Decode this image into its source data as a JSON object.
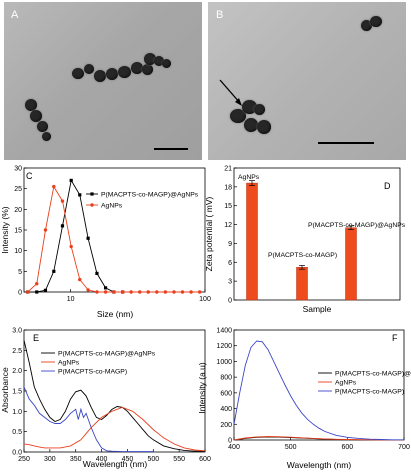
{
  "panels": {
    "a": {
      "label": "A"
    },
    "b": {
      "label": "B"
    }
  },
  "chart_data": [
    {
      "panel": "C",
      "type": "line",
      "xlabel": "Size (nm)",
      "ylabel": "Intensity (%)",
      "xscale": "log",
      "xlim": [
        4.5,
        100
      ],
      "ylim": [
        0,
        30
      ],
      "xticks": [
        10,
        100
      ],
      "yticks": [
        0,
        5,
        10,
        15,
        20,
        25,
        30
      ],
      "legend_position": "top-right",
      "series": [
        {
          "name": "P(MACPTS-co-MAGP)@AgNPs",
          "color": "#000000",
          "marker": "square",
          "x": [
            4.8,
            5.6,
            6.5,
            7.5,
            8.7,
            10.1,
            11.7,
            13.5,
            15.7,
            18.2,
            21,
            24.4
          ],
          "y": [
            0,
            0,
            0.4,
            5,
            16,
            27,
            23.5,
            13,
            4.5,
            1,
            0,
            0
          ]
        },
        {
          "name": "AgNPs",
          "color": "#e8401c",
          "marker": "circle",
          "x": [
            4.8,
            5.6,
            6.5,
            7.5,
            8.7,
            10.1,
            11.7,
            13.5,
            15.7,
            18.2,
            21,
            24.4,
            28.2,
            32.7,
            37.8,
            43.8,
            50.7,
            58.8,
            68,
            78.8,
            91.3
          ],
          "y": [
            0,
            2,
            15,
            25.5,
            22,
            11,
            3,
            0.5,
            0,
            0,
            0,
            0,
            0,
            0,
            0,
            0,
            0,
            0,
            0,
            0,
            0
          ]
        }
      ]
    },
    {
      "panel": "D",
      "type": "bar",
      "xlabel": "Sample",
      "ylabel": "Zeta potential ( mV)",
      "ylim": [
        0,
        21
      ],
      "yticks": [
        0,
        3,
        6,
        9,
        12,
        15,
        18,
        21
      ],
      "color": "#ef4c1e",
      "categories": [
        "AgNPs",
        "P(MACPTS-co-MAGP)",
        "P(MACPTS-co-MAGP)@AgNPs"
      ],
      "values": [
        18.6,
        5.2,
        11.5
      ],
      "errors": [
        0.4,
        0.3,
        0.3
      ]
    },
    {
      "panel": "E",
      "type": "line",
      "xlabel": "Wavelength (nm)",
      "ylabel": "Absorbance",
      "xlim": [
        250,
        600
      ],
      "ylim": [
        0,
        3.0
      ],
      "xticks": [
        250,
        300,
        350,
        400,
        450,
        500,
        550,
        600
      ],
      "yticks": [
        0.0,
        0.5,
        1.0,
        1.5,
        2.0,
        2.5,
        3.0
      ],
      "legend_position": "top-right",
      "series": [
        {
          "name": "P(MACPTS-co-MAGP)@AgNPs",
          "color": "#000000",
          "x": [
            250,
            260,
            270,
            280,
            290,
            300,
            310,
            320,
            330,
            340,
            350,
            360,
            370,
            380,
            390,
            400,
            410,
            420,
            430,
            440,
            450,
            460,
            470,
            480,
            490,
            500,
            520,
            540,
            560,
            580,
            600
          ],
          "y": [
            2.75,
            2.2,
            1.6,
            1.3,
            1.05,
            0.85,
            0.75,
            0.8,
            1.0,
            1.3,
            1.48,
            1.52,
            1.38,
            1.1,
            0.85,
            0.8,
            0.9,
            1.05,
            1.12,
            1.1,
            1.0,
            0.85,
            0.7,
            0.55,
            0.4,
            0.3,
            0.15,
            0.08,
            0.04,
            0.02,
            0.02
          ]
        },
        {
          "name": "AgNPs",
          "color": "#e8401c",
          "x": [
            250,
            260,
            270,
            280,
            290,
            300,
            320,
            340,
            360,
            380,
            400,
            420,
            440,
            460,
            480,
            500,
            520,
            540,
            560,
            580,
            600
          ],
          "y": [
            0.2,
            0.18,
            0.15,
            0.12,
            0.1,
            0.1,
            0.1,
            0.15,
            0.3,
            0.6,
            0.85,
            1.0,
            1.1,
            1.0,
            0.8,
            0.55,
            0.35,
            0.2,
            0.1,
            0.05,
            0.03
          ]
        },
        {
          "name": "P(MACPTS-co-MAGP)",
          "color": "#3b48c8",
          "x": [
            250,
            260,
            270,
            280,
            290,
            300,
            310,
            320,
            330,
            340,
            350,
            355,
            360,
            365,
            370,
            380,
            390,
            400,
            410,
            420,
            440,
            460,
            480,
            500
          ],
          "y": [
            1.6,
            1.3,
            1.15,
            0.95,
            0.85,
            0.75,
            0.7,
            0.7,
            0.8,
            0.95,
            1.05,
            0.8,
            1.05,
            0.85,
            0.95,
            0.6,
            0.3,
            0.1,
            0.03,
            0.02,
            0.01,
            0.01,
            0.01,
            0.01
          ]
        }
      ]
    },
    {
      "panel": "F",
      "type": "line",
      "xlabel": "Wavelength (nm)",
      "ylabel": "Intensity (a.u)",
      "xlim": [
        400,
        700
      ],
      "ylim": [
        0,
        1400
      ],
      "xticks": [
        400,
        500,
        600,
        700
      ],
      "yticks": [
        0,
        200,
        400,
        600,
        800,
        1000,
        1200,
        1400
      ],
      "legend_position": "top-right",
      "series": [
        {
          "name": "P(MACPTS-co-MAGP)@AgNPs",
          "color": "#000000",
          "x": [
            400,
            420,
            440,
            460,
            480,
            500,
            520,
            540,
            560,
            580,
            600,
            620,
            640,
            660,
            680,
            700
          ],
          "y": [
            0,
            20,
            35,
            40,
            38,
            32,
            25,
            18,
            12,
            8,
            5,
            3,
            2,
            1,
            1,
            1
          ]
        },
        {
          "name": "AgNPs",
          "color": "#e8401c",
          "x": [
            400,
            420,
            440,
            460,
            480,
            500,
            520,
            540,
            560,
            580,
            600,
            620,
            640,
            660,
            680,
            700
          ],
          "y": [
            0,
            25,
            40,
            45,
            42,
            36,
            28,
            20,
            14,
            9,
            6,
            4,
            2,
            1,
            1,
            1
          ]
        },
        {
          "name": "P(MACPTS-co-MAGP)",
          "color": "#3b48c8",
          "x": [
            400,
            410,
            420,
            430,
            440,
            450,
            460,
            470,
            480,
            490,
            500,
            510,
            520,
            530,
            540,
            550,
            560,
            580,
            600,
            620,
            640,
            660,
            680,
            700
          ],
          "y": [
            200,
            600,
            950,
            1180,
            1260,
            1250,
            1150,
            1000,
            850,
            700,
            560,
            440,
            340,
            260,
            200,
            150,
            110,
            60,
            35,
            20,
            10,
            6,
            3,
            2
          ]
        }
      ]
    }
  ]
}
